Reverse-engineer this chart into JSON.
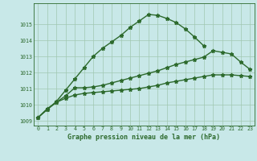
{
  "title": "Graphe pression niveau de la mer (hPa)",
  "background_color": "#c8e8e8",
  "grid_color": "#a0c8b0",
  "line_color": "#2d6a2d",
  "hours": [
    0,
    1,
    2,
    3,
    4,
    5,
    6,
    7,
    8,
    9,
    10,
    11,
    12,
    13,
    14,
    15,
    16,
    17,
    18,
    19,
    20,
    21,
    22,
    23
  ],
  "s1": [
    1009.2,
    1009.7,
    1010.2,
    1010.9,
    1011.6,
    1012.3,
    1013.0,
    1013.5,
    1013.9,
    1014.3,
    1014.8,
    1015.2,
    1015.6,
    1015.55,
    1015.35,
    1015.1,
    1014.7,
    1014.2,
    1013.65,
    null,
    null,
    null,
    null,
    null
  ],
  "s2": [
    1009.2,
    1009.7,
    1010.15,
    1010.55,
    1011.05,
    1011.05,
    1011.1,
    1011.2,
    1011.35,
    1011.5,
    1011.65,
    1011.8,
    1011.95,
    1012.1,
    1012.3,
    1012.5,
    1012.65,
    1012.8,
    1012.95,
    1013.35,
    1013.25,
    1013.15,
    1012.65,
    1012.2
  ],
  "s3": [
    1009.2,
    1009.75,
    1010.15,
    1010.4,
    1010.6,
    1010.7,
    1010.75,
    1010.8,
    1010.85,
    1010.9,
    1010.95,
    1011.0,
    1011.1,
    1011.2,
    1011.35,
    1011.45,
    1011.55,
    1011.65,
    1011.75,
    1011.85,
    1011.85,
    1011.85,
    1011.8,
    1011.75
  ],
  "ylim_min": 1008.7,
  "ylim_max": 1016.3,
  "yticks": [
    1009,
    1010,
    1011,
    1012,
    1013,
    1014,
    1015
  ],
  "marker_size": 3.5,
  "linewidth": 1.0
}
